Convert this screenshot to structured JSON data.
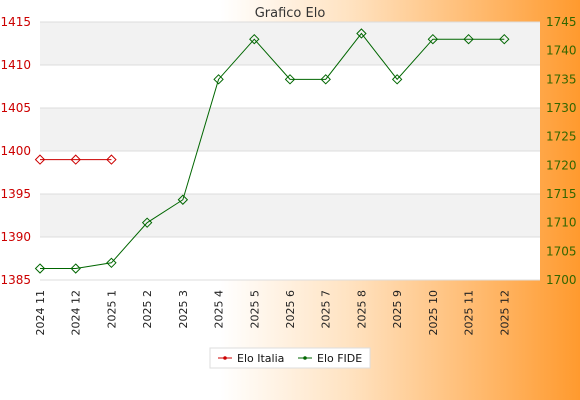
{
  "chart_data": {
    "type": "line",
    "title": "Grafico Elo",
    "categories": [
      "2024 11",
      "2024 12",
      "2025 1",
      "2025 2",
      "2025 3",
      "2025 4",
      "2025 5",
      "2025 6",
      "2025 7",
      "2025 8",
      "2025 9",
      "2025 10",
      "2025 11",
      "2025 12"
    ],
    "y_left": {
      "range": [
        1385,
        1415
      ],
      "ticks": [
        1385,
        1390,
        1395,
        1400,
        1405,
        1410,
        1415
      ]
    },
    "y_right": {
      "range": [
        1700,
        1745
      ],
      "ticks": [
        1700,
        1705,
        1710,
        1715,
        1720,
        1725,
        1730,
        1735,
        1740,
        1745
      ]
    },
    "series": [
      {
        "name": "Elo Italia",
        "axis": "left",
        "color": "#cc0000",
        "values": [
          1399,
          1399,
          1399,
          null,
          null,
          null,
          null,
          null,
          null,
          null,
          null,
          null,
          null,
          null
        ]
      },
      {
        "name": "Elo FIDE",
        "axis": "right",
        "color": "#006600",
        "values": [
          1702,
          1702,
          1703,
          1710,
          1714,
          1735,
          1742,
          1735,
          1735,
          1743,
          1735,
          1742,
          1742,
          1742
        ]
      }
    ],
    "grid": true,
    "legend": "bottom"
  }
}
